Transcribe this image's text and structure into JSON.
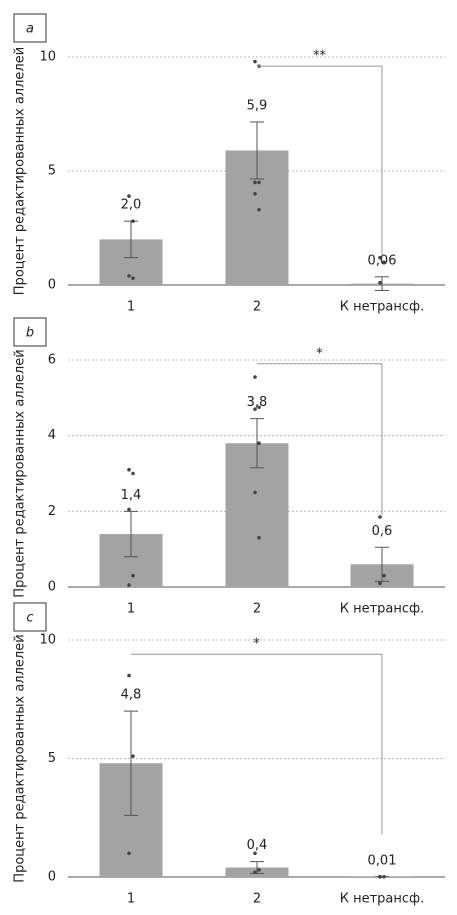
{
  "chart_data": [
    {
      "type": "bar",
      "panel_label": "a",
      "ylabel": "Процент редактированных аллелей",
      "categories": [
        "1",
        "2",
        "К нетрансф."
      ],
      "values": [
        2.0,
        5.9,
        0.06
      ],
      "value_labels": [
        "2,0",
        "5,9",
        "0,06"
      ],
      "errors": [
        0.8,
        1.25,
        0.3
      ],
      "points": [
        [
          3.9,
          2.8,
          0.4,
          0.3
        ],
        [
          9.8,
          9.6,
          4.5,
          4.5,
          4.0,
          3.3
        ],
        [
          1.2,
          1.0,
          0.1
        ]
      ],
      "ylim": [
        0,
        10
      ],
      "yticks": [
        0,
        5,
        10
      ],
      "grid": true,
      "color": "#a3a3a3",
      "bracket": {
        "from": 1,
        "to": 2,
        "y": 9.6,
        "drop": 1.3,
        "label": "**"
      }
    },
    {
      "type": "bar",
      "panel_label": "b",
      "ylabel": "Процент редактированных аллелей",
      "categories": [
        "1",
        "2",
        "К нетрансф."
      ],
      "values": [
        1.4,
        3.8,
        0.6
      ],
      "value_labels": [
        "1,4",
        "3,8",
        "0,6"
      ],
      "errors": [
        0.6,
        0.65,
        0.45
      ],
      "points": [
        [
          3.1,
          3.0,
          2.05,
          0.3,
          0.05
        ],
        [
          5.55,
          4.75,
          4.7,
          3.8,
          2.5,
          1.3
        ],
        [
          1.85,
          0.3,
          0.1
        ]
      ],
      "ylim": [
        0,
        6
      ],
      "yticks": [
        0,
        2,
        4,
        6
      ],
      "grid": true,
      "color": "#a3a3a3",
      "bracket": {
        "from": 1,
        "to": 2,
        "y": 5.9,
        "drop": 1.9,
        "label": "*"
      }
    },
    {
      "type": "bar",
      "panel_label": "c",
      "ylabel": "Процент редактированных аллелей",
      "categories": [
        "1",
        "2",
        "К нетрансф."
      ],
      "values": [
        4.8,
        0.4,
        0.01
      ],
      "value_labels": [
        "4,8",
        "0,4",
        "0,01"
      ],
      "errors": [
        2.2,
        0.25,
        0
      ],
      "points": [
        [
          8.5,
          5.1,
          1.0
        ],
        [
          1.0,
          0.3,
          0.2
        ],
        [
          0.02,
          0.01,
          0.0
        ]
      ],
      "ylim": [
        0,
        10
      ],
      "yticks": [
        0,
        5,
        10
      ],
      "grid": true,
      "color": "#a3a3a3",
      "bracket": {
        "from": 0,
        "to": 2,
        "y": 9.4,
        "drop": 1.8,
        "label": "*"
      }
    }
  ]
}
